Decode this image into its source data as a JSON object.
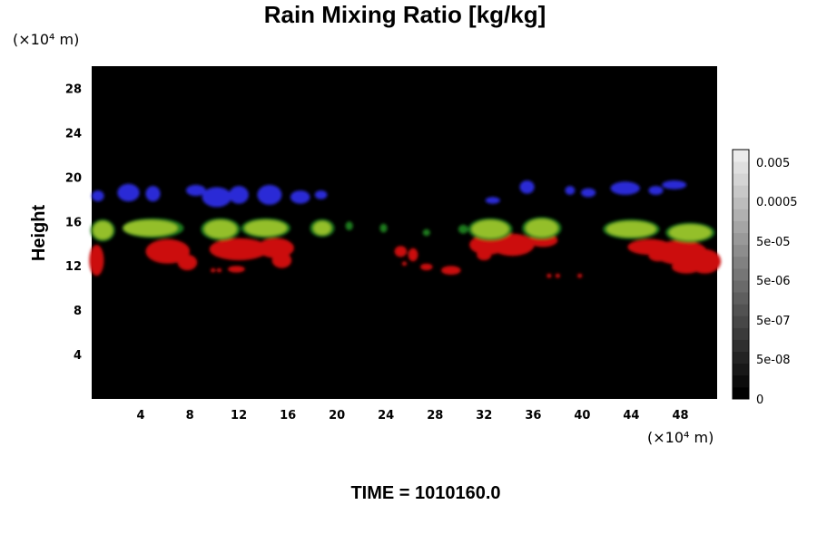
{
  "chart_data": {
    "type": "heatmap",
    "title": "Rain Mixing Ratio [kg/kg]",
    "xlabel": "",
    "ylabel": "Height",
    "x_unit": "(×10⁴ m)",
    "y_unit": "(×10⁴ m)",
    "xlim": [
      0,
      51
    ],
    "ylim": [
      0,
      30
    ],
    "x_ticks": [
      "4",
      "8",
      "12",
      "16",
      "20",
      "24",
      "28",
      "32",
      "36",
      "40",
      "44",
      "48"
    ],
    "y_ticks": [
      "4",
      "8",
      "12",
      "16",
      "20",
      "24",
      "28"
    ],
    "x_tick_values": [
      4,
      8,
      12,
      16,
      20,
      24,
      28,
      32,
      36,
      40,
      44,
      48
    ],
    "y_tick_values": [
      4,
      8,
      12,
      16,
      20,
      24,
      28
    ],
    "colorbar": {
      "labels": [
        "0.005",
        "0.0005",
        "5e-05",
        "5e-06",
        "5e-07",
        "5e-08",
        "0"
      ],
      "levels": 21
    },
    "background_color": "#000000",
    "layers": [
      {
        "color": "#2a2ad6",
        "blobs": [
          {
            "x": 0.5,
            "y": 18.3,
            "rx": 0.5,
            "ry": 0.5
          },
          {
            "x": 3.0,
            "y": 18.6,
            "rx": 0.9,
            "ry": 0.8
          },
          {
            "x": 5.0,
            "y": 18.5,
            "rx": 0.6,
            "ry": 0.7
          },
          {
            "x": 8.5,
            "y": 18.8,
            "rx": 0.8,
            "ry": 0.5
          },
          {
            "x": 10.2,
            "y": 18.2,
            "rx": 1.2,
            "ry": 0.9
          },
          {
            "x": 12.0,
            "y": 18.4,
            "rx": 0.8,
            "ry": 0.8
          },
          {
            "x": 14.5,
            "y": 18.4,
            "rx": 1.0,
            "ry": 0.9
          },
          {
            "x": 17.0,
            "y": 18.2,
            "rx": 0.8,
            "ry": 0.6
          },
          {
            "x": 18.7,
            "y": 18.4,
            "rx": 0.5,
            "ry": 0.4
          },
          {
            "x": 32.7,
            "y": 17.9,
            "rx": 0.6,
            "ry": 0.3
          },
          {
            "x": 35.5,
            "y": 19.1,
            "rx": 0.6,
            "ry": 0.6
          },
          {
            "x": 39.0,
            "y": 18.8,
            "rx": 0.4,
            "ry": 0.4
          },
          {
            "x": 40.5,
            "y": 18.6,
            "rx": 0.6,
            "ry": 0.4
          },
          {
            "x": 43.5,
            "y": 19.0,
            "rx": 1.2,
            "ry": 0.6
          },
          {
            "x": 46.0,
            "y": 18.8,
            "rx": 0.6,
            "ry": 0.4
          },
          {
            "x": 47.5,
            "y": 19.3,
            "rx": 1.0,
            "ry": 0.4
          }
        ]
      },
      {
        "color": "#cc1111",
        "blobs": [
          {
            "x": 0.4,
            "y": 12.5,
            "rx": 0.6,
            "ry": 1.4
          },
          {
            "x": 6.2,
            "y": 13.3,
            "rx": 1.8,
            "ry": 1.1
          },
          {
            "x": 7.8,
            "y": 12.3,
            "rx": 0.8,
            "ry": 0.7
          },
          {
            "x": 12.0,
            "y": 13.5,
            "rx": 2.4,
            "ry": 1.0
          },
          {
            "x": 15.0,
            "y": 13.6,
            "rx": 1.5,
            "ry": 0.9
          },
          {
            "x": 15.5,
            "y": 12.5,
            "rx": 0.8,
            "ry": 0.7
          },
          {
            "x": 11.8,
            "y": 11.7,
            "rx": 0.7,
            "ry": 0.3
          },
          {
            "x": 8.0,
            "y": 11.9,
            "rx": 0.2,
            "ry": 0.2
          },
          {
            "x": 9.9,
            "y": 11.6,
            "rx": 0.2,
            "ry": 0.2
          },
          {
            "x": 10.4,
            "y": 11.6,
            "rx": 0.2,
            "ry": 0.2
          },
          {
            "x": 25.2,
            "y": 13.3,
            "rx": 0.5,
            "ry": 0.5
          },
          {
            "x": 26.2,
            "y": 13.0,
            "rx": 0.4,
            "ry": 0.6
          },
          {
            "x": 27.3,
            "y": 11.9,
            "rx": 0.5,
            "ry": 0.3
          },
          {
            "x": 29.3,
            "y": 11.6,
            "rx": 0.8,
            "ry": 0.4
          },
          {
            "x": 25.5,
            "y": 12.2,
            "rx": 0.2,
            "ry": 0.2
          },
          {
            "x": 32.3,
            "y": 13.9,
            "rx": 1.5,
            "ry": 0.9
          },
          {
            "x": 34.3,
            "y": 13.9,
            "rx": 1.8,
            "ry": 1.0
          },
          {
            "x": 36.8,
            "y": 14.3,
            "rx": 1.2,
            "ry": 0.6
          },
          {
            "x": 32.0,
            "y": 13.0,
            "rx": 0.6,
            "ry": 0.5
          },
          {
            "x": 37.3,
            "y": 11.1,
            "rx": 0.2,
            "ry": 0.2
          },
          {
            "x": 38.0,
            "y": 11.1,
            "rx": 0.2,
            "ry": 0.2
          },
          {
            "x": 39.8,
            "y": 11.1,
            "rx": 0.2,
            "ry": 0.2
          },
          {
            "x": 45.5,
            "y": 13.7,
            "rx": 1.8,
            "ry": 0.7
          },
          {
            "x": 48.0,
            "y": 13.2,
            "rx": 2.2,
            "ry": 1.1
          },
          {
            "x": 50.0,
            "y": 12.4,
            "rx": 1.3,
            "ry": 1.1
          },
          {
            "x": 48.5,
            "y": 11.9,
            "rx": 1.2,
            "ry": 0.6
          },
          {
            "x": 46.2,
            "y": 12.9,
            "rx": 0.8,
            "ry": 0.5
          }
        ]
      },
      {
        "color": "#1f7a1f",
        "blobs": [
          {
            "x": 0.9,
            "y": 15.2,
            "rx": 1.0,
            "ry": 1.0
          },
          {
            "x": 5.0,
            "y": 15.4,
            "rx": 2.5,
            "ry": 0.9
          },
          {
            "x": 10.5,
            "y": 15.3,
            "rx": 1.6,
            "ry": 1.0
          },
          {
            "x": 14.2,
            "y": 15.4,
            "rx": 2.0,
            "ry": 0.9
          },
          {
            "x": 18.8,
            "y": 15.4,
            "rx": 1.0,
            "ry": 0.8
          },
          {
            "x": 21.0,
            "y": 15.6,
            "rx": 0.3,
            "ry": 0.4
          },
          {
            "x": 23.8,
            "y": 15.4,
            "rx": 0.3,
            "ry": 0.4
          },
          {
            "x": 27.3,
            "y": 15.0,
            "rx": 0.3,
            "ry": 0.3
          },
          {
            "x": 30.3,
            "y": 15.3,
            "rx": 0.4,
            "ry": 0.4
          },
          {
            "x": 32.5,
            "y": 15.3,
            "rx": 1.8,
            "ry": 1.0
          },
          {
            "x": 36.7,
            "y": 15.4,
            "rx": 1.6,
            "ry": 1.0
          },
          {
            "x": 44.0,
            "y": 15.3,
            "rx": 2.3,
            "ry": 0.9
          },
          {
            "x": 48.8,
            "y": 15.0,
            "rx": 2.0,
            "ry": 0.9
          }
        ]
      },
      {
        "color": "#94bf2a",
        "blobs": [
          {
            "x": 0.9,
            "y": 15.2,
            "rx": 0.8,
            "ry": 0.8
          },
          {
            "x": 4.8,
            "y": 15.4,
            "rx": 2.2,
            "ry": 0.7
          },
          {
            "x": 10.5,
            "y": 15.3,
            "rx": 1.3,
            "ry": 0.8
          },
          {
            "x": 14.2,
            "y": 15.4,
            "rx": 1.7,
            "ry": 0.7
          },
          {
            "x": 18.8,
            "y": 15.4,
            "rx": 0.7,
            "ry": 0.6
          },
          {
            "x": 32.5,
            "y": 15.3,
            "rx": 1.5,
            "ry": 0.8
          },
          {
            "x": 36.7,
            "y": 15.4,
            "rx": 1.3,
            "ry": 0.8
          },
          {
            "x": 44.0,
            "y": 15.3,
            "rx": 2.0,
            "ry": 0.7
          },
          {
            "x": 48.8,
            "y": 15.0,
            "rx": 1.7,
            "ry": 0.7
          }
        ]
      }
    ]
  },
  "footer": {
    "time_label": "TIME = 1010160.0"
  }
}
